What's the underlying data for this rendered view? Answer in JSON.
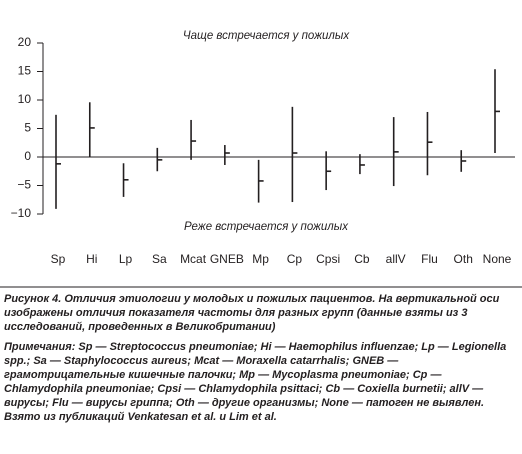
{
  "chart_data": {
    "type": "range",
    "annotation_top": "Чаще встречается у пожилых",
    "annotation_bottom": "Реже встречается у пожилых",
    "categories": [
      "Sp",
      "Hi",
      "Lp",
      "Sa",
      "Mcat",
      "GNEB",
      "Mp",
      "Cp",
      "Cpsi",
      "Cb",
      "allV",
      "Flu",
      "Oth",
      "None"
    ],
    "high": [
      7.4,
      9.6,
      -1.1,
      1.6,
      6.5,
      2.1,
      -0.5,
      8.8,
      1,
      0.5,
      7,
      7.9,
      1.2,
      15.4
    ],
    "low": [
      -9.1,
      0,
      -7,
      -2.5,
      -0.5,
      -1.4,
      -8,
      -7.9,
      -5.8,
      -3,
      -5.1,
      -3.2,
      -2.6,
      0.7
    ],
    "values": [
      -1.2,
      5.1,
      -4,
      -0.5,
      2.8,
      0.7,
      -4.2,
      0.7,
      -2.5,
      -1.4,
      0.9,
      2.6,
      -0.7,
      8
    ],
    "color": "#231f20",
    "ylim": [
      -10,
      20
    ],
    "yticks": [
      20,
      15,
      10,
      5,
      0,
      {
        "value": -5,
        "label": "−5"
      },
      {
        "value": -10,
        "label": "−10"
      }
    ]
  },
  "caption": "Рисунок 4. Отличия этиологии у молодых и пожилых пациентов. На вертикальной оси изображены отличия показателя частоты для разных групп (данные взяты из 3 исследований, проведенных в Великобритании)",
  "notes": "Примечания: Sp — Streptococcus pneumoniae; Hi — Haemophilus influenzae; Lp — Legionella spp.; Sa — Staphylococcus aureus; Mcat — Moraxella catarrhalis; GNEB — грамотрицательные кишечные палочки; Mp — Mycoplasma pneumoniae; Cp — Chlamydophila pneumoniae; Cpsi — Chlamydophila psittaci; Cb — Coxiella burnetii; allV — вирусы; Flu — вирусы гриппа; Oth — другие организмы; None — патоген не выявлен. Взято из публикаций Venkatesan et al. и Lim et al."
}
